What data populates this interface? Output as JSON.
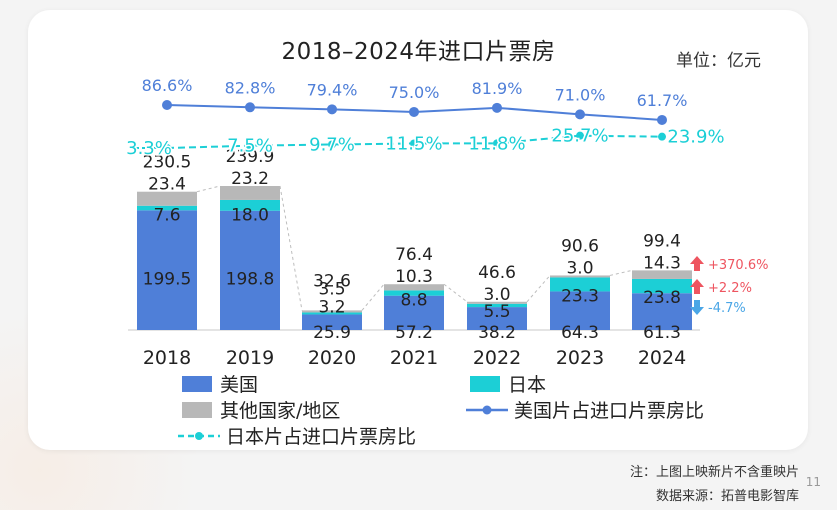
{
  "page": {
    "title": "2018–2024年进口片票房",
    "unit": "单位：亿元",
    "footnote": "注：上图上映新片不含重映片",
    "source": "数据来源：拓普电影智库",
    "page_number": "11"
  },
  "legend": {
    "usa": "美国",
    "japan": "日本",
    "other": "其他国家/地区",
    "usa_share": "美国片占进口片票房比",
    "japan_share": "日本片占进口片票房比"
  },
  "colors": {
    "usa": "#4f7fd8",
    "japan": "#1ccfd6",
    "other": "#b8b8b8",
    "usa_line": "#4f7fd8",
    "japan_line": "#1ccfd6",
    "up": "#ee5560",
    "down": "#4aa6e6"
  },
  "chart_data": {
    "type": "bar",
    "stacked": true,
    "categories": [
      "2018",
      "2019",
      "2020",
      "2021",
      "2022",
      "2023",
      "2024"
    ],
    "series": [
      {
        "name": "美国",
        "values": [
          199.5,
          198.8,
          25.9,
          57.2,
          38.2,
          64.3,
          61.3
        ]
      },
      {
        "name": "日本",
        "values": [
          7.6,
          18.0,
          3.2,
          8.8,
          5.5,
          23.3,
          23.8
        ]
      },
      {
        "name": "其他国家/地区",
        "values": [
          23.4,
          23.2,
          3.5,
          10.3,
          3.0,
          3.0,
          14.3
        ]
      }
    ],
    "value_labels": {
      "美国": [
        "199.5",
        "198.8",
        "25.9",
        "57.2",
        "38.2",
        "64.3",
        "61.3"
      ],
      "日本": [
        "7.6",
        "18.0",
        "3.2",
        "8.8",
        "5.5",
        "23.3",
        "23.8"
      ],
      "其他国家/地区": [
        "23.4",
        "23.2",
        "3.5",
        "10.3",
        "3.0",
        "3.0",
        "14.3"
      ]
    },
    "totals": [
      230.5,
      239.9,
      32.6,
      76.4,
      46.6,
      90.6,
      99.4
    ],
    "total_labels": [
      "230.5",
      "239.9",
      "32.6",
      "76.4",
      "46.6",
      "90.6",
      "99.4"
    ],
    "ylim": [
      0,
      260
    ],
    "lines": [
      {
        "name": "美国片占进口片票房比",
        "values": [
          86.6,
          82.8,
          79.4,
          75.0,
          81.9,
          71.0,
          61.7
        ],
        "labels": [
          "86.6%",
          "82.8%",
          "79.4%",
          "75.0%",
          "81.9%",
          "71.0%",
          "61.7%"
        ]
      },
      {
        "name": "日本片占进口片票房比",
        "values": [
          3.3,
          7.5,
          9.7,
          11.5,
          11.8,
          25.7,
          23.9
        ],
        "labels": [
          "3.3%",
          "7.5%",
          "9.7%",
          "11.5%",
          "11.8%",
          "25.7%",
          "23.9%"
        ]
      }
    ],
    "changes_2024": [
      {
        "series": "其他国家/地区",
        "label": "+370.6%",
        "direction": "up"
      },
      {
        "series": "日本",
        "label": "+2.2%",
        "direction": "up"
      },
      {
        "series": "美国",
        "label": "-4.7%",
        "direction": "down"
      }
    ]
  }
}
